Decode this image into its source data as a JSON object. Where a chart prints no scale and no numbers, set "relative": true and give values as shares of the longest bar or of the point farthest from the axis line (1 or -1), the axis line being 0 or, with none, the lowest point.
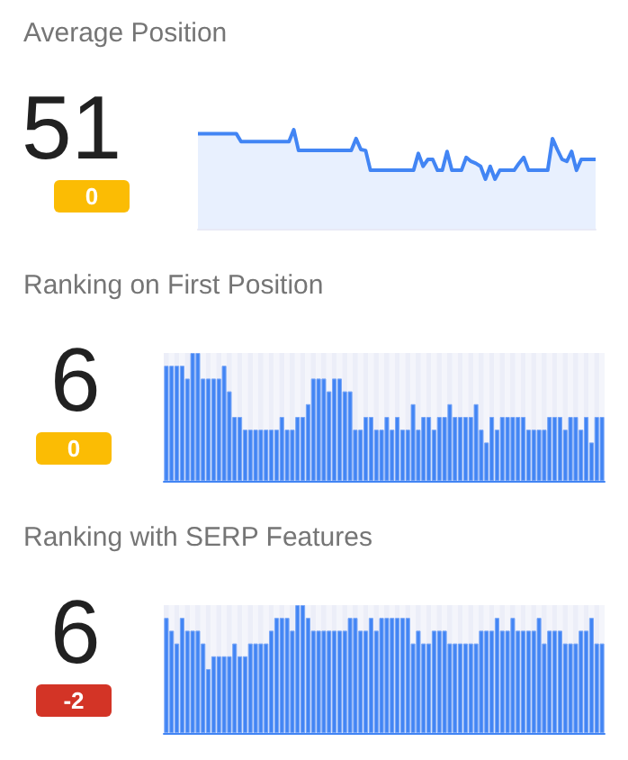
{
  "chart_data": [
    {
      "type": "area",
      "title": "Average Position",
      "annotations": [
        "51",
        "0"
      ],
      "relative": true,
      "color": "#4285f4",
      "categories": [
        null,
        null,
        null,
        null,
        null,
        null,
        null,
        null,
        null,
        null,
        null,
        null,
        null,
        null,
        null,
        null,
        null,
        null,
        null,
        null,
        null,
        null,
        null,
        null,
        null,
        null,
        null,
        null,
        null,
        null,
        null,
        null,
        null,
        null,
        null,
        null,
        null,
        null,
        null,
        null,
        null,
        null,
        null,
        null,
        null,
        null,
        null,
        null,
        null,
        null,
        null,
        null,
        null,
        null,
        null,
        null,
        null,
        null,
        null,
        null,
        null,
        null,
        null,
        null,
        null,
        null,
        null,
        null,
        null,
        null,
        null,
        null,
        null,
        null,
        null,
        null,
        null,
        null,
        null,
        null,
        null,
        null,
        null,
        null
      ],
      "values": [
        0.96,
        0.96,
        0.96,
        0.96,
        0.96,
        0.96,
        0.96,
        0.96,
        0.96,
        0.88,
        0.88,
        0.88,
        0.88,
        0.88,
        0.88,
        0.88,
        0.88,
        0.88,
        0.88,
        0.88,
        1.0,
        0.79,
        0.79,
        0.79,
        0.79,
        0.79,
        0.79,
        0.79,
        0.79,
        0.79,
        0.79,
        0.79,
        0.79,
        0.91,
        0.8,
        0.79,
        0.59,
        0.59,
        0.59,
        0.59,
        0.59,
        0.59,
        0.59,
        0.59,
        0.59,
        0.59,
        0.76,
        0.63,
        0.7,
        0.7,
        0.59,
        0.59,
        0.78,
        0.59,
        0.59,
        0.59,
        0.72,
        0.68,
        0.66,
        0.63,
        0.5,
        0.63,
        0.5,
        0.59,
        0.59,
        0.59,
        0.59,
        0.66,
        0.72,
        0.59,
        0.59,
        0.59,
        0.59,
        0.59,
        0.91,
        0.8,
        0.7,
        0.68,
        0.78,
        0.59,
        0.7,
        0.7,
        0.7,
        0.7
      ]
    },
    {
      "type": "bar",
      "title": "Ranking on First Position",
      "annotations": [
        "6",
        "0"
      ],
      "relative": true,
      "color": "#4285f4",
      "categories": [
        null,
        null,
        null,
        null,
        null,
        null,
        null,
        null,
        null,
        null,
        null,
        null,
        null,
        null,
        null,
        null,
        null,
        null,
        null,
        null,
        null,
        null,
        null,
        null,
        null,
        null,
        null,
        null,
        null,
        null,
        null,
        null,
        null,
        null,
        null,
        null,
        null,
        null,
        null,
        null,
        null,
        null,
        null,
        null,
        null,
        null,
        null,
        null,
        null,
        null,
        null,
        null,
        null,
        null,
        null,
        null,
        null,
        null,
        null,
        null,
        null,
        null,
        null,
        null,
        null,
        null,
        null,
        null,
        null,
        null,
        null,
        null,
        null,
        null,
        null,
        null,
        null,
        null,
        null,
        null,
        null,
        null,
        null,
        null
      ],
      "values": [
        0.9,
        0.9,
        0.9,
        0.9,
        0.8,
        1.0,
        1.0,
        0.8,
        0.8,
        0.8,
        0.8,
        0.9,
        0.7,
        0.5,
        0.5,
        0.4,
        0.4,
        0.4,
        0.4,
        0.4,
        0.4,
        0.4,
        0.5,
        0.4,
        0.4,
        0.5,
        0.5,
        0.6,
        0.8,
        0.8,
        0.8,
        0.7,
        0.8,
        0.8,
        0.7,
        0.7,
        0.4,
        0.4,
        0.5,
        0.5,
        0.4,
        0.4,
        0.5,
        0.4,
        0.5,
        0.4,
        0.4,
        0.6,
        0.4,
        0.5,
        0.5,
        0.4,
        0.5,
        0.5,
        0.6,
        0.5,
        0.5,
        0.5,
        0.5,
        0.6,
        0.4,
        0.3,
        0.5,
        0.4,
        0.5,
        0.5,
        0.5,
        0.5,
        0.5,
        0.4,
        0.4,
        0.4,
        0.4,
        0.5,
        0.5,
        0.5,
        0.4,
        0.5,
        0.5,
        0.4,
        0.5,
        0.3,
        0.5,
        0.5
      ]
    },
    {
      "type": "bar",
      "title": "Ranking with SERP Features",
      "annotations": [
        "6",
        "-2"
      ],
      "relative": true,
      "color": "#4285f4",
      "categories": [
        null,
        null,
        null,
        null,
        null,
        null,
        null,
        null,
        null,
        null,
        null,
        null,
        null,
        null,
        null,
        null,
        null,
        null,
        null,
        null,
        null,
        null,
        null,
        null,
        null,
        null,
        null,
        null,
        null,
        null,
        null,
        null,
        null,
        null,
        null,
        null,
        null,
        null,
        null,
        null,
        null,
        null,
        null,
        null,
        null,
        null,
        null,
        null,
        null,
        null,
        null,
        null,
        null,
        null,
        null,
        null,
        null,
        null,
        null,
        null,
        null,
        null,
        null,
        null,
        null,
        null,
        null,
        null,
        null,
        null,
        null,
        null,
        null,
        null,
        null,
        null,
        null,
        null,
        null,
        null,
        null,
        null,
        null,
        null
      ],
      "values": [
        0.9,
        0.8,
        0.7,
        0.9,
        0.8,
        0.8,
        0.8,
        0.7,
        0.5,
        0.6,
        0.6,
        0.6,
        0.6,
        0.7,
        0.6,
        0.6,
        0.7,
        0.7,
        0.7,
        0.7,
        0.8,
        0.9,
        0.9,
        0.9,
        0.8,
        1.0,
        1.0,
        0.9,
        0.8,
        0.8,
        0.8,
        0.8,
        0.8,
        0.8,
        0.8,
        0.9,
        0.9,
        0.8,
        0.8,
        0.9,
        0.8,
        0.9,
        0.9,
        0.9,
        0.9,
        0.9,
        0.9,
        0.7,
        0.8,
        0.7,
        0.7,
        0.8,
        0.8,
        0.8,
        0.7,
        0.7,
        0.7,
        0.7,
        0.7,
        0.7,
        0.8,
        0.8,
        0.8,
        0.9,
        0.8,
        0.8,
        0.9,
        0.8,
        0.8,
        0.8,
        0.8,
        0.9,
        0.7,
        0.8,
        0.8,
        0.8,
        0.7,
        0.7,
        0.7,
        0.8,
        0.8,
        0.9,
        0.7,
        0.7
      ]
    }
  ]
}
